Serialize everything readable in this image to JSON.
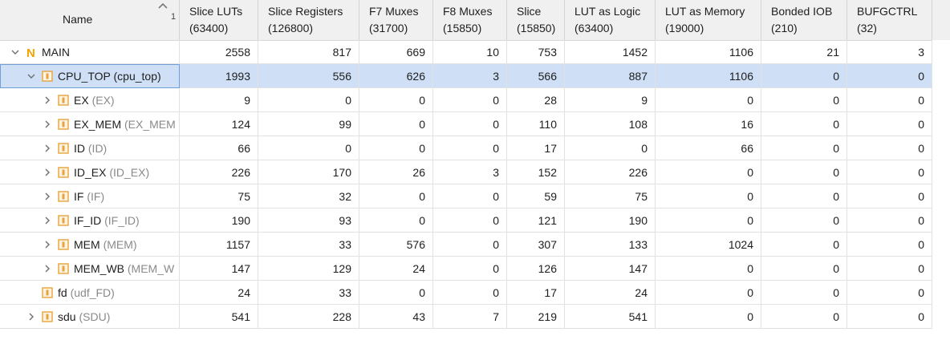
{
  "header": {
    "name_label": "Name",
    "sort_index": "1",
    "columns": [
      {
        "title": "Slice LUTs",
        "avail": "(63400)"
      },
      {
        "title": "Slice Registers",
        "avail": "(126800)"
      },
      {
        "title": "F7 Muxes",
        "avail": "(31700)"
      },
      {
        "title": "F8 Muxes",
        "avail": "(15850)"
      },
      {
        "title": "Slice",
        "avail": "(15850)"
      },
      {
        "title": "LUT as Logic",
        "avail": "(63400)"
      },
      {
        "title": "LUT as Memory",
        "avail": "(19000)"
      },
      {
        "title": "Bonded IOB",
        "avail": "(210)"
      },
      {
        "title": "BUFGCTRL",
        "avail": "(32)"
      }
    ]
  },
  "rows": [
    {
      "name": "MAIN",
      "sub": "",
      "level": 0,
      "expander": "expanded",
      "icon": "top-module-n-icon",
      "values": [
        "2558",
        "817",
        "669",
        "10",
        "753",
        "1452",
        "1106",
        "21",
        "3"
      ]
    },
    {
      "name": "CPU_TOP",
      "sub": "(cpu_top)",
      "level": 1,
      "expander": "expanded",
      "icon": "module-icon",
      "selected": true,
      "values": [
        "1993",
        "556",
        "626",
        "3",
        "566",
        "887",
        "1106",
        "0",
        "0"
      ]
    },
    {
      "name": "EX",
      "sub": "(EX)",
      "level": 2,
      "expander": "collapsed",
      "icon": "module-icon",
      "values": [
        "9",
        "0",
        "0",
        "0",
        "28",
        "9",
        "0",
        "0",
        "0"
      ]
    },
    {
      "name": "EX_MEM",
      "sub": "(EX_MEM",
      "level": 2,
      "expander": "collapsed",
      "icon": "module-icon",
      "values": [
        "124",
        "99",
        "0",
        "0",
        "110",
        "108",
        "16",
        "0",
        "0"
      ]
    },
    {
      "name": "ID",
      "sub": "(ID)",
      "level": 2,
      "expander": "collapsed",
      "icon": "module-icon",
      "values": [
        "66",
        "0",
        "0",
        "0",
        "17",
        "0",
        "66",
        "0",
        "0"
      ]
    },
    {
      "name": "ID_EX",
      "sub": "(ID_EX)",
      "level": 2,
      "expander": "collapsed",
      "icon": "module-icon",
      "values": [
        "226",
        "170",
        "26",
        "3",
        "152",
        "226",
        "0",
        "0",
        "0"
      ]
    },
    {
      "name": "IF",
      "sub": "(IF)",
      "level": 2,
      "expander": "collapsed",
      "icon": "module-icon",
      "values": [
        "75",
        "32",
        "0",
        "0",
        "59",
        "75",
        "0",
        "0",
        "0"
      ]
    },
    {
      "name": "IF_ID",
      "sub": "(IF_ID)",
      "level": 2,
      "expander": "collapsed",
      "icon": "module-icon",
      "values": [
        "190",
        "93",
        "0",
        "0",
        "121",
        "190",
        "0",
        "0",
        "0"
      ]
    },
    {
      "name": "MEM",
      "sub": "(MEM)",
      "level": 2,
      "expander": "collapsed",
      "icon": "module-icon",
      "values": [
        "1157",
        "33",
        "576",
        "0",
        "307",
        "133",
        "1024",
        "0",
        "0"
      ]
    },
    {
      "name": "MEM_WB",
      "sub": "(MEM_W",
      "level": 2,
      "expander": "collapsed",
      "icon": "module-icon",
      "values": [
        "147",
        "129",
        "24",
        "0",
        "126",
        "147",
        "0",
        "0",
        "0"
      ]
    },
    {
      "name": "fd",
      "sub": "(udf_FD)",
      "level": 1,
      "expander": "none",
      "icon": "module-icon",
      "values": [
        "24",
        "33",
        "0",
        "0",
        "17",
        "24",
        "0",
        "0",
        "0"
      ]
    },
    {
      "name": "sdu",
      "sub": "(SDU)",
      "level": 1,
      "expander": "collapsed",
      "icon": "module-icon",
      "values": [
        "541",
        "228",
        "43",
        "7",
        "219",
        "541",
        "0",
        "0",
        "0"
      ]
    }
  ],
  "colors": {
    "header_bg": "#f0f0f0",
    "selected_row": "#cfe0f6",
    "module_icon": "#e8a33d",
    "top_icon": "#f0a500",
    "sub_text": "#8a8a8a"
  }
}
